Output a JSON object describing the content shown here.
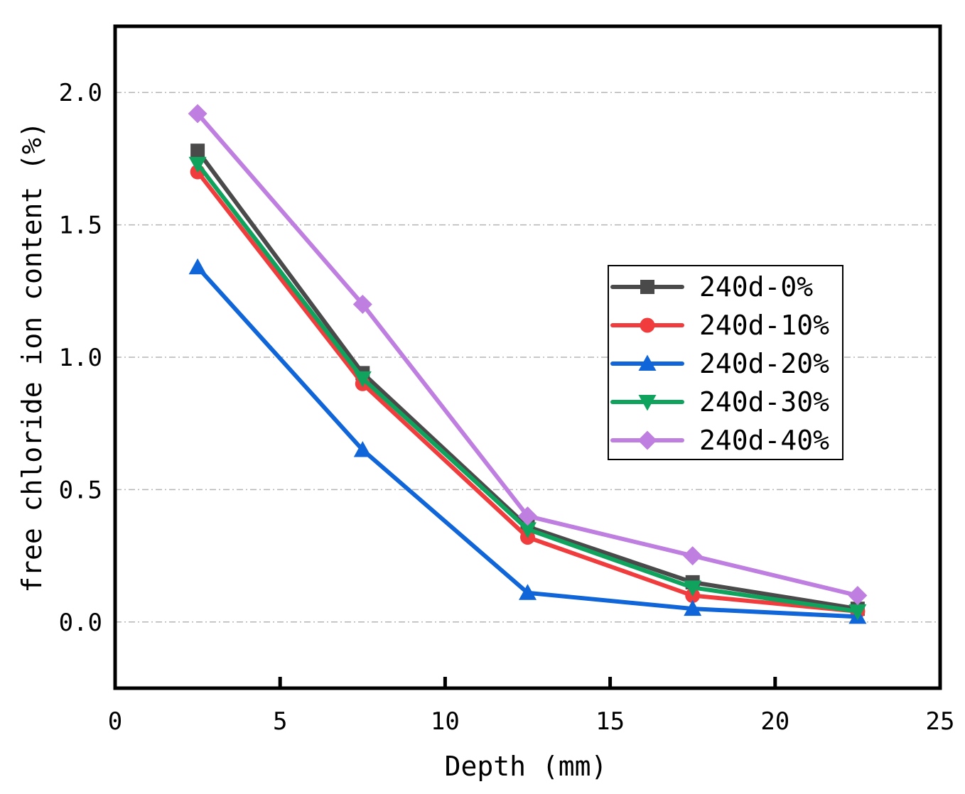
{
  "chart_data": {
    "type": "line",
    "title": "",
    "xlabel": "Depth (mm)",
    "ylabel": "free chloride ion content (%)",
    "xlim": [
      0,
      25
    ],
    "ylim": [
      -0.25,
      2.25
    ],
    "xticks": [
      0,
      5,
      10,
      15,
      20,
      25
    ],
    "yticks": [
      0.0,
      0.5,
      1.0,
      1.5,
      2.0
    ],
    "xtick_labels": [
      "0",
      "5",
      "10",
      "15",
      "20",
      "25"
    ],
    "ytick_labels": [
      "0.0",
      "0.5",
      "1.0",
      "1.5",
      "2.0"
    ],
    "grid": "horizontal dashed",
    "legend_position": "center-right",
    "x": [
      2.5,
      7.5,
      12.5,
      17.5,
      22.5
    ],
    "series": [
      {
        "name": "240d-0%",
        "color": "#4a4a4a",
        "marker": "square",
        "values": [
          1.78,
          0.94,
          0.36,
          0.15,
          0.05
        ]
      },
      {
        "name": "240d-10%",
        "color": "#f03c3c",
        "marker": "circle",
        "values": [
          1.7,
          0.9,
          0.32,
          0.1,
          0.04
        ]
      },
      {
        "name": "240d-20%",
        "color": "#1066d8",
        "marker": "triangle-up",
        "values": [
          1.34,
          0.65,
          0.11,
          0.05,
          0.02
        ]
      },
      {
        "name": "240d-30%",
        "color": "#0fa35e",
        "marker": "triangle-down",
        "values": [
          1.73,
          0.92,
          0.35,
          0.13,
          0.04
        ]
      },
      {
        "name": "240d-40%",
        "color": "#bf7fe0",
        "marker": "diamond",
        "values": [
          1.92,
          1.2,
          0.4,
          0.25,
          0.1
        ]
      }
    ]
  }
}
